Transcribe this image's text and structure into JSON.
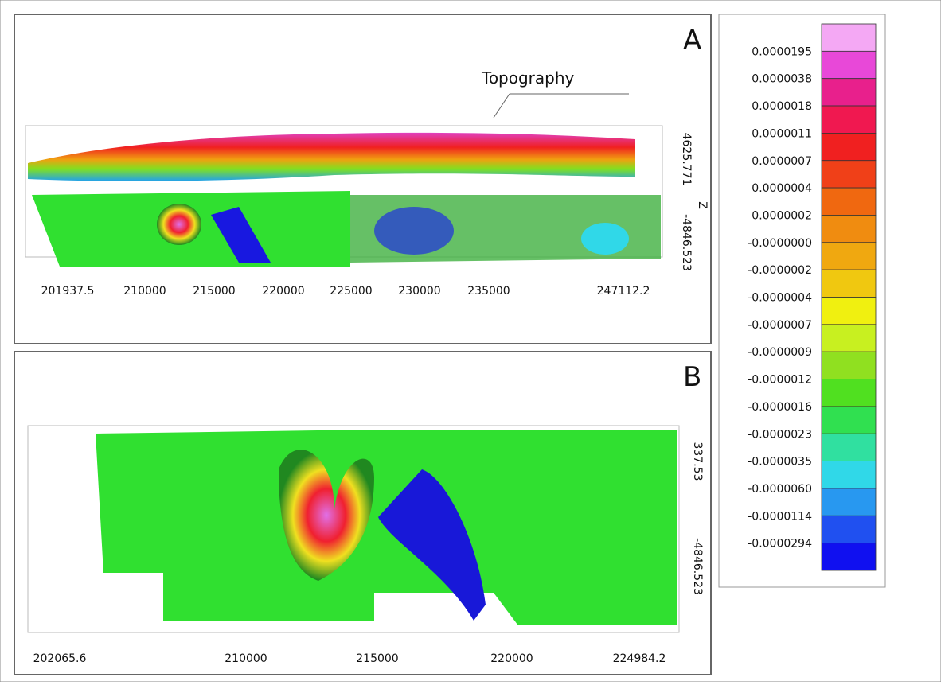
{
  "panel_a": {
    "label": "A",
    "annotation": "Topography",
    "x_labels": [
      "201937.5",
      "210000",
      "215000",
      "220000",
      "225000",
      "230000",
      "235000",
      "247112.2"
    ],
    "z_labels": [
      "4625.771",
      "-4846.523"
    ],
    "z_axis": "Z"
  },
  "panel_b": {
    "label": "B",
    "x_labels": [
      "202065.6",
      "210000",
      "215000",
      "220000",
      "224984.2"
    ],
    "z_labels": [
      "337.53",
      "-4846.523"
    ]
  },
  "legend": {
    "labels": [
      "0.0000195",
      "0.0000038",
      "0.0000018",
      "0.0000011",
      "0.0000007",
      "0.0000004",
      "0.0000002",
      "-0.0000000",
      "-0.0000002",
      "-0.0000004",
      "-0.0000007",
      "-0.0000009",
      "-0.0000012",
      "-0.0000016",
      "-0.0000023",
      "-0.0000035",
      "-0.0000060",
      "-0.0000114",
      "-0.0000294"
    ],
    "colors": [
      "#f4a8f4",
      "#e848d8",
      "#e8208c",
      "#f01850",
      "#f02020",
      "#f04018",
      "#f06810",
      "#f08c10",
      "#f0a810",
      "#f0c810",
      "#f0f010",
      "#c8f020",
      "#90e020",
      "#50e020",
      "#30e050",
      "#30e0a0",
      "#30d8e8",
      "#2898f0",
      "#2050f0",
      "#1010f0"
    ]
  }
}
